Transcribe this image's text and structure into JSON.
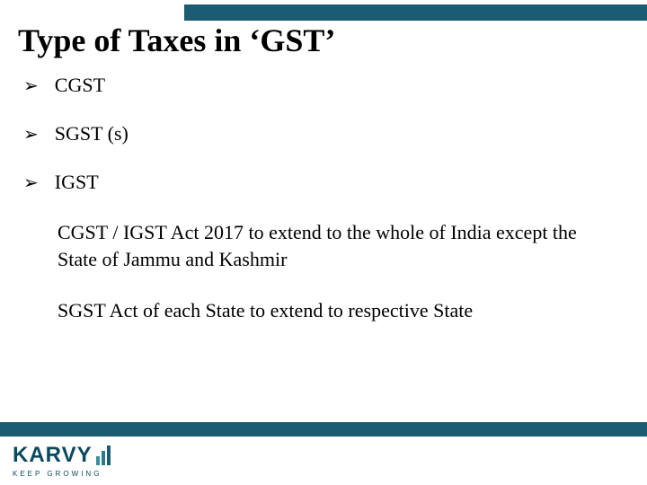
{
  "title": "Type of Taxes in ‘GST’",
  "bullet_marker": "➢",
  "bullets": [
    "CGST",
    "SGST (s)",
    "IGST"
  ],
  "paragraphs": [
    "CGST / IGST Act 2017 to extend to the whole of India except the State of Jammu and Kashmir",
    "SGST Act of each State to extend to respective State"
  ],
  "logo": {
    "text": "KARVY",
    "tagline": "KEEP GROWING"
  },
  "colors": {
    "accent": "#1a5d73",
    "text": "#000000",
    "logo_text": "#0a4a5e",
    "background": "#ffffff"
  }
}
